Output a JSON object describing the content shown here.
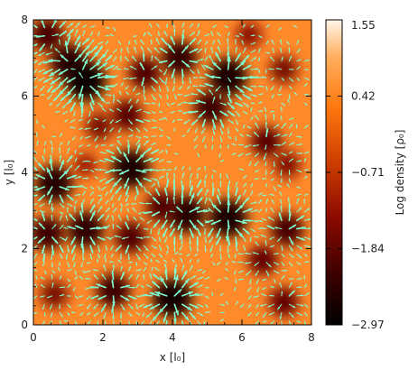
{
  "chart_data": {
    "type": "heatmap",
    "title": "",
    "xlabel": "x [l₀]",
    "ylabel": "y [l₀]",
    "xlim": [
      0,
      8
    ],
    "ylim": [
      0,
      8
    ],
    "x_ticks": [
      0,
      2,
      4,
      6,
      8
    ],
    "y_ticks": [
      0,
      2,
      4,
      6,
      8
    ],
    "colorbar": {
      "label": "Log density [ρ₀]",
      "range": [
        -2.97,
        1.55
      ],
      "tick_values": [
        1.55,
        0.42,
        -0.71,
        -1.84,
        -2.97
      ],
      "tick_labels": [
        "1.55",
        "0.42",
        "−0.71",
        "−1.84",
        "−2.97"
      ],
      "colormap": "black-red-orange-white"
    },
    "overlay": {
      "type": "velocity-vectors",
      "color": "#7fffd4"
    },
    "low_density_regions": [
      {
        "x": 0.4,
        "y": 7.6,
        "v": -2.1
      },
      {
        "x": 1.0,
        "y": 6.9,
        "v": -2.4
      },
      {
        "x": 1.5,
        "y": 6.4,
        "v": -2.8
      },
      {
        "x": 3.2,
        "y": 6.6,
        "v": -2.0
      },
      {
        "x": 4.2,
        "y": 7.0,
        "v": -2.3
      },
      {
        "x": 5.6,
        "y": 6.5,
        "v": -2.6
      },
      {
        "x": 5.1,
        "y": 5.7,
        "v": -2.2
      },
      {
        "x": 7.2,
        "y": 6.7,
        "v": -1.6
      },
      {
        "x": 2.7,
        "y": 5.5,
        "v": -1.9
      },
      {
        "x": 1.9,
        "y": 5.2,
        "v": -1.6
      },
      {
        "x": 6.7,
        "y": 4.8,
        "v": -1.9
      },
      {
        "x": 7.3,
        "y": 4.2,
        "v": -1.5
      },
      {
        "x": 0.6,
        "y": 3.7,
        "v": -2.5
      },
      {
        "x": 2.8,
        "y": 4.1,
        "v": -2.6
      },
      {
        "x": 4.4,
        "y": 2.9,
        "v": -2.5
      },
      {
        "x": 5.6,
        "y": 2.8,
        "v": -2.6
      },
      {
        "x": 3.7,
        "y": 3.1,
        "v": -2.0
      },
      {
        "x": 1.5,
        "y": 2.5,
        "v": -2.4
      },
      {
        "x": 0.4,
        "y": 2.4,
        "v": -2.2
      },
      {
        "x": 2.8,
        "y": 2.3,
        "v": -2.0
      },
      {
        "x": 7.3,
        "y": 2.5,
        "v": -2.1
      },
      {
        "x": 6.6,
        "y": 1.7,
        "v": -1.8
      },
      {
        "x": 4.0,
        "y": 0.7,
        "v": -2.7
      },
      {
        "x": 2.3,
        "y": 0.9,
        "v": -2.2
      },
      {
        "x": 0.6,
        "y": 0.8,
        "v": -1.6
      },
      {
        "x": 7.2,
        "y": 0.6,
        "v": -1.8
      },
      {
        "x": 6.2,
        "y": 7.6,
        "v": -1.4
      },
      {
        "x": 1.5,
        "y": 4.2,
        "v": -1.2
      }
    ]
  }
}
